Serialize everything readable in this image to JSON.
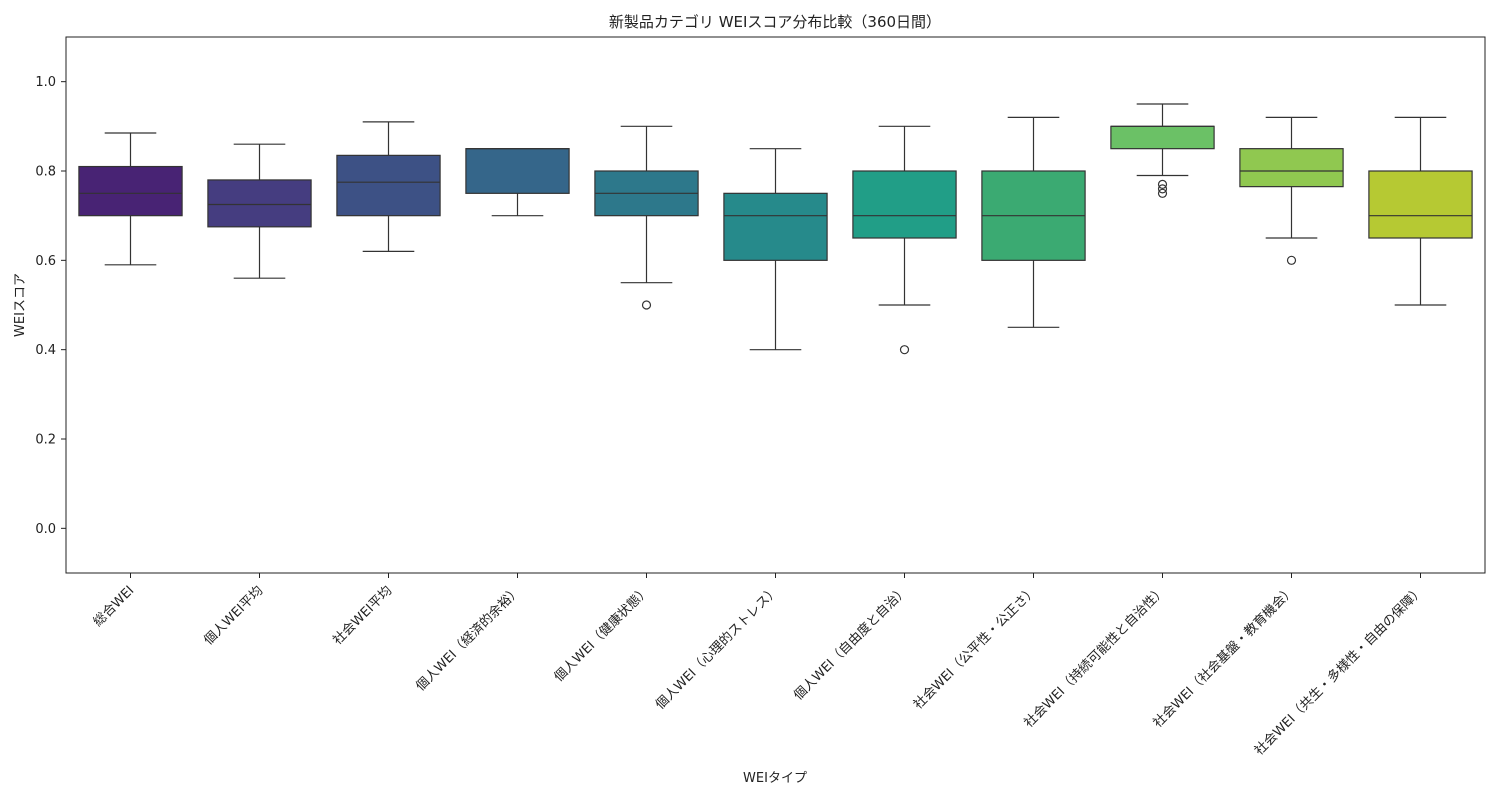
{
  "chart_data": {
    "type": "box",
    "title": "新製品カテゴリ WEIスコア分布比較（360日間）",
    "xlabel": "WEIタイプ",
    "ylabel": "WEIスコア",
    "ylim": [
      -0.1,
      1.1
    ],
    "yticks": [
      0.0,
      0.2,
      0.4,
      0.6,
      0.8,
      1.0
    ],
    "ytick_labels": [
      "0.0",
      "0.2",
      "0.4",
      "0.6",
      "0.8",
      "1.0"
    ],
    "grid": false,
    "categories": [
      "総合WEI",
      "個人WEI平均",
      "社会WEI平均",
      "個人WEI（経済的余裕）",
      "個人WEI（健康状態）",
      "個人WEI（心理的ストレス）",
      "個人WEI（自由度と自治）",
      "社会WEI（公平性・公正さ）",
      "社会WEI（持続可能性と自治性）",
      "社会WEI（社会基盤・教育機会）",
      "社会WEI（共生・多様性・自由の保障）"
    ],
    "boxes": [
      {
        "whisker_low": 0.59,
        "q1": 0.7,
        "median": 0.75,
        "q3": 0.81,
        "whisker_high": 0.885,
        "outliers": [],
        "color": "#482374"
      },
      {
        "whisker_low": 0.56,
        "q1": 0.675,
        "median": 0.725,
        "q3": 0.78,
        "whisker_high": 0.86,
        "outliers": [],
        "color": "#453d80"
      },
      {
        "whisker_low": 0.62,
        "q1": 0.7,
        "median": 0.775,
        "q3": 0.835,
        "whisker_high": 0.91,
        "outliers": [],
        "color": "#3d5185"
      },
      {
        "whisker_low": 0.7,
        "q1": 0.75,
        "median": 0.85,
        "q3": 0.85,
        "whisker_high": 0.85,
        "outliers": [],
        "color": "#35668a"
      },
      {
        "whisker_low": 0.55,
        "q1": 0.7,
        "median": 0.75,
        "q3": 0.8,
        "whisker_high": 0.9,
        "outliers": [
          0.5
        ],
        "color": "#2d788b"
      },
      {
        "whisker_low": 0.4,
        "q1": 0.6,
        "median": 0.7,
        "q3": 0.75,
        "whisker_high": 0.85,
        "outliers": [],
        "color": "#268a8b"
      },
      {
        "whisker_low": 0.5,
        "q1": 0.65,
        "median": 0.7,
        "q3": 0.8,
        "whisker_high": 0.9,
        "outliers": [
          0.4
        ],
        "color": "#219e87"
      },
      {
        "whisker_low": 0.45,
        "q1": 0.6,
        "median": 0.7,
        "q3": 0.8,
        "whisker_high": 0.92,
        "outliers": [],
        "color": "#3baa72"
      },
      {
        "whisker_low": 0.79,
        "q1": 0.85,
        "median": 0.9,
        "q3": 0.9,
        "whisker_high": 0.95,
        "outliers": [
          0.75,
          0.76,
          0.77
        ],
        "color": "#6bc166"
      },
      {
        "whisker_low": 0.65,
        "q1": 0.765,
        "median": 0.8,
        "q3": 0.85,
        "whisker_high": 0.92,
        "outliers": [
          0.6
        ],
        "color": "#90c850"
      },
      {
        "whisker_low": 0.5,
        "q1": 0.65,
        "median": 0.7,
        "q3": 0.8,
        "whisker_high": 0.92,
        "outliers": [],
        "color": "#b6c933"
      }
    ]
  }
}
